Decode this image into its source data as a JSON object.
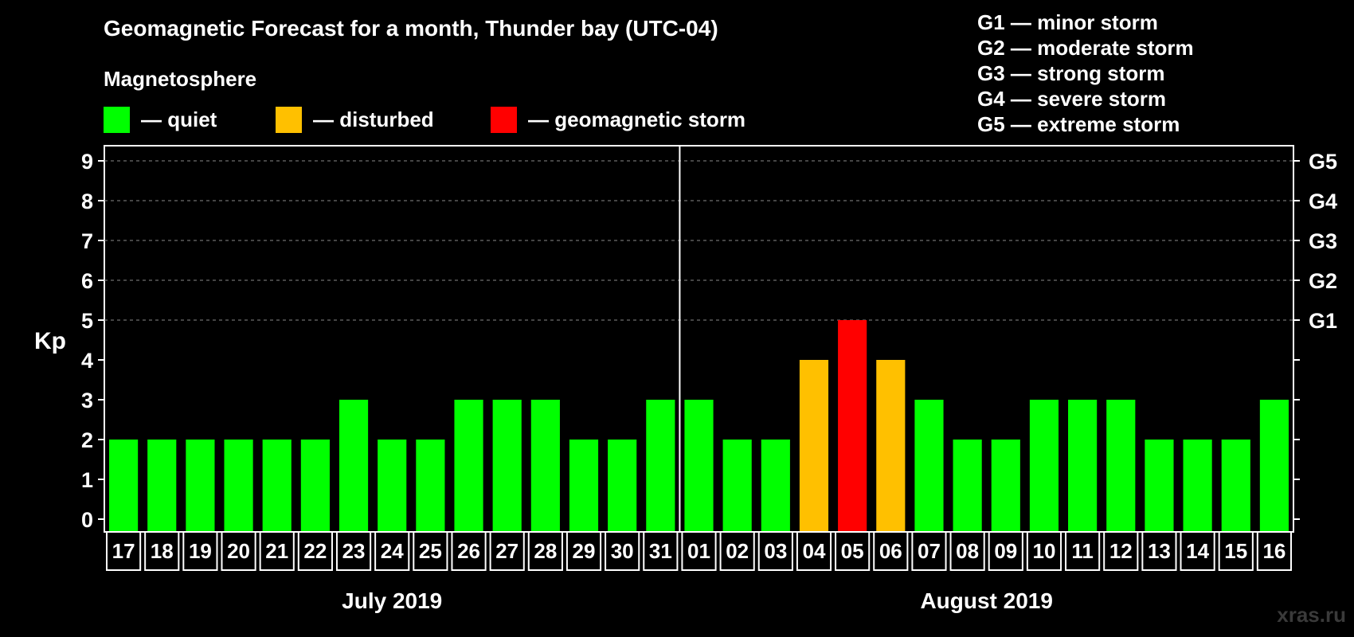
{
  "header": {
    "title": "Geomagnetic Forecast for a month, Thunder bay (UTC-04)",
    "subtitle": "Magnetosphere"
  },
  "legend": [
    {
      "label": "— quiet",
      "color": "#00ff00"
    },
    {
      "label": "— disturbed",
      "color": "#ffc000"
    },
    {
      "label": "— geomagnetic storm",
      "color": "#ff0000"
    }
  ],
  "storm_levels": [
    "G1 — minor storm",
    "G2 — moderate storm",
    "G3 — strong storm",
    "G4 — severe storm",
    "G5 — extreme storm"
  ],
  "watermark": "xras.ru",
  "chart_data": {
    "type": "bar",
    "ylabel": "Kp",
    "ylim": [
      0,
      9
    ],
    "yticks": [
      0,
      1,
      2,
      3,
      4,
      5,
      6,
      7,
      8,
      9
    ],
    "right_axis": [
      {
        "value": 5,
        "label": "G1"
      },
      {
        "value": 6,
        "label": "G2"
      },
      {
        "value": 7,
        "label": "G3"
      },
      {
        "value": 8,
        "label": "G4"
      },
      {
        "value": 9,
        "label": "G5"
      }
    ],
    "grid": "dashed horizontal at 5-9",
    "categories": [
      "17",
      "18",
      "19",
      "20",
      "21",
      "22",
      "23",
      "24",
      "25",
      "26",
      "27",
      "28",
      "29",
      "30",
      "31",
      "01",
      "02",
      "03",
      "04",
      "05",
      "06",
      "07",
      "08",
      "09",
      "10",
      "11",
      "12",
      "13",
      "14",
      "15",
      "16"
    ],
    "values": [
      2,
      2,
      2,
      2,
      2,
      2,
      3,
      2,
      2,
      3,
      3,
      3,
      2,
      2,
      3,
      3,
      2,
      2,
      4,
      5,
      4,
      3,
      2,
      2,
      3,
      3,
      3,
      2,
      2,
      2,
      3
    ],
    "status": [
      "quiet",
      "quiet",
      "quiet",
      "quiet",
      "quiet",
      "quiet",
      "quiet",
      "quiet",
      "quiet",
      "quiet",
      "quiet",
      "quiet",
      "quiet",
      "quiet",
      "quiet",
      "quiet",
      "quiet",
      "quiet",
      "disturbed",
      "storm",
      "disturbed",
      "quiet",
      "quiet",
      "quiet",
      "quiet",
      "quiet",
      "quiet",
      "quiet",
      "quiet",
      "quiet",
      "quiet"
    ],
    "status_colors": {
      "quiet": "#00ff00",
      "disturbed": "#ffc000",
      "storm": "#ff0000"
    },
    "months": [
      {
        "label": "July 2019",
        "start": 0,
        "end": 14
      },
      {
        "label": "August 2019",
        "start": 15,
        "end": 30
      }
    ]
  }
}
